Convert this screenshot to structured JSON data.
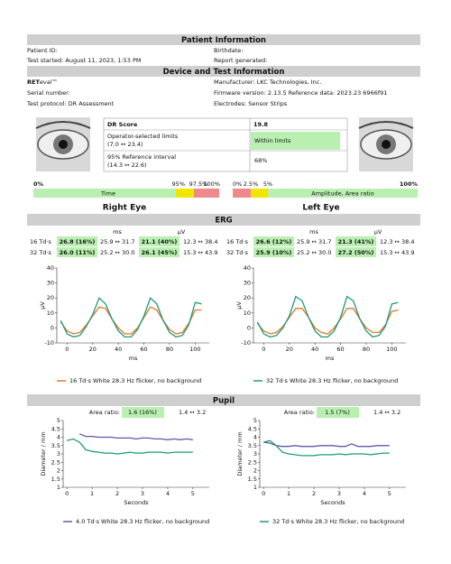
{
  "sections": {
    "patient": "Patient Information",
    "device": "Device and Test Information",
    "erg": "ERG",
    "pupil": "Pupil"
  },
  "patient": {
    "id": "Patient ID:",
    "test_started": "Test started: August 11, 2023, 1:53 PM",
    "birthdate": "Birthdate:",
    "report": "Report generated:"
  },
  "device": {
    "brand": "RET",
    "brand_italic": "eval™",
    "manufacturer": "Manufacturer: LKC Technologies, Inc.",
    "serial": "Serial number:",
    "firmware": "Firmware version: 2.13.5 Reference data: 2023.23 6966f91",
    "protocol": "Test protocol: DR Assessment",
    "electrodes": "Electrodes: Sensor Strips"
  },
  "dr_table": {
    "rows": [
      {
        "label": "DR Score",
        "value": "19.8"
      },
      {
        "label": "Operator-selected limits",
        "range": "(7.0 ↔ 23.4)",
        "value": "Within limits"
      },
      {
        "label": "95% Reference interval",
        "range": "(14.3 ↔ 22.6)",
        "value": "68%"
      }
    ]
  },
  "scales": {
    "left": {
      "labels": [
        "0%",
        "95%",
        "97.5%",
        "100%"
      ],
      "name": "Time"
    },
    "right": {
      "labels": [
        "0%",
        "2.5%",
        "5%",
        "100%"
      ],
      "name": "Amplitude, Area ratio"
    }
  },
  "eyes": {
    "right": "Right Eye",
    "left": "Left Eye"
  },
  "erg_table": {
    "units": [
      "ms",
      "µV"
    ],
    "right": [
      {
        "label": "16 Td·s",
        "ms": "26.8 (16%)",
        "ms_range": "25.9 ↔ 31.7",
        "uv": "21.1 (40%)",
        "uv_range": "12.3 ↔ 38.4"
      },
      {
        "label": "32 Td·s",
        "ms": "26.0 (11%)",
        "ms_range": "25.2 ↔ 30.0",
        "uv": "26.1 (45%)",
        "uv_range": "15.3 ↔ 43.9"
      }
    ],
    "left": [
      {
        "label": "16 Td·s",
        "ms": "26.6 (12%)",
        "ms_range": "25.9 ↔ 31.7",
        "uv": "21.3 (41%)",
        "uv_range": "12.3 ↔ 38.4"
      },
      {
        "label": "32 Td·s",
        "ms": "25.9 (10%)",
        "ms_range": "25.2 ↔ 30.0",
        "uv": "27.2 (50%)",
        "uv_range": "15.3 ↔ 43.9"
      }
    ]
  },
  "area_ratio": {
    "label": "Area ratio:",
    "right": {
      "value": "1.6 (16%)",
      "range": "1.4 ↔ 3.2"
    },
    "left": {
      "value": "1.5 (7%)",
      "range": "1.4 ↔ 3.2"
    }
  },
  "chart_data": [
    {
      "type": "line",
      "xlabel": "ms",
      "ylabel": "µV",
      "xlim": [
        -8,
        111
      ],
      "ylim": [
        -10,
        40
      ],
      "xticks": [
        0,
        20,
        40,
        60,
        80,
        100
      ],
      "yticks": [
        -10,
        0,
        10,
        20,
        30,
        40
      ],
      "x": [
        -5,
        0,
        5,
        10,
        15,
        20,
        25,
        30,
        35,
        40,
        45,
        50,
        55,
        60,
        65,
        70,
        75,
        80,
        85,
        90,
        95,
        100,
        105
      ],
      "series": [
        {
          "name": "16 Td·s White 28.3 Hz flicker, no background",
          "color": "#e8742a",
          "values": [
            4,
            -2,
            -4,
            -3,
            2,
            8,
            14,
            13,
            6,
            0,
            -4,
            -4,
            0,
            7,
            14,
            12,
            5,
            -1,
            -4,
            -3,
            3,
            12,
            12
          ]
        },
        {
          "color": "#1a9a7c",
          "values": [
            5,
            -4,
            -6,
            -5,
            1,
            9,
            20,
            16,
            6,
            -2,
            -6,
            -6,
            -1,
            8,
            20,
            16,
            5,
            -3,
            -6,
            -5,
            2,
            17,
            16
          ]
        }
      ]
    },
    {
      "type": "line",
      "xlabel": "ms",
      "ylabel": "µV",
      "xlim": [
        -8,
        111
      ],
      "ylim": [
        -10,
        40
      ],
      "xticks": [
        0,
        20,
        40,
        60,
        80,
        100
      ],
      "yticks": [
        -10,
        0,
        10,
        20,
        30,
        40
      ],
      "x": [
        -5,
        0,
        5,
        10,
        15,
        20,
        25,
        30,
        35,
        40,
        45,
        50,
        55,
        60,
        65,
        70,
        75,
        80,
        85,
        90,
        95,
        100,
        105
      ],
      "series": [
        {
          "color": "#e8742a",
          "values": [
            3,
            -2,
            -4,
            -3,
            1,
            7,
            13,
            13,
            7,
            0,
            -3,
            -4,
            0,
            6,
            13,
            13,
            6,
            0,
            -3,
            -3,
            2,
            11,
            12
          ]
        },
        {
          "name": "32 Td·s White 28.3 Hz flicker, no background",
          "color": "#1a9a7c",
          "values": [
            4,
            -4,
            -6,
            -5,
            0,
            8,
            21,
            18,
            7,
            -2,
            -6,
            -6,
            -2,
            7,
            21,
            18,
            6,
            -2,
            -6,
            -5,
            1,
            16,
            17
          ]
        }
      ]
    },
    {
      "type": "line",
      "xlabel": "Seconds",
      "ylabel": "Diameter / mm",
      "xlim": [
        -0.15,
        5.65
      ],
      "ylim": [
        1,
        5
      ],
      "xticks": [
        0,
        1,
        2,
        3,
        4,
        5
      ],
      "yticks": [
        1,
        1.5,
        2,
        2.5,
        3,
        3.5,
        4,
        4.5,
        5
      ],
      "x": [
        0,
        0.25,
        0.5,
        0.75,
        1,
        1.25,
        1.5,
        1.75,
        2,
        2.25,
        2.5,
        2.75,
        3,
        3.25,
        3.5,
        3.75,
        4,
        4.25,
        4.5,
        4.75,
        5
      ],
      "series": [
        {
          "name": "4.0 Td·s White 28.3 Hz flicker, no background",
          "color": "#5a5aa8",
          "values": [
            null,
            null,
            4.2,
            4.05,
            4.05,
            4.0,
            4.0,
            4.0,
            3.95,
            3.95,
            3.95,
            3.9,
            3.95,
            3.95,
            3.9,
            3.9,
            3.85,
            3.9,
            3.85,
            3.9,
            3.85
          ]
        },
        {
          "color": "#1a9a7c",
          "values": [
            3.8,
            3.9,
            3.7,
            3.25,
            3.15,
            3.1,
            3.05,
            3.05,
            3.0,
            3.05,
            3.1,
            3.05,
            3.05,
            3.1,
            3.1,
            3.1,
            3.05,
            3.1,
            3.1,
            3.1,
            3.1
          ]
        }
      ]
    },
    {
      "type": "line",
      "xlabel": "Seconds",
      "ylabel": "Diameter / mm",
      "xlim": [
        -0.15,
        5.65
      ],
      "ylim": [
        1,
        5
      ],
      "xticks": [
        0,
        1,
        2,
        3,
        4,
        5
      ],
      "yticks": [
        1,
        1.5,
        2,
        2.5,
        3,
        3.5,
        4,
        4.5,
        5
      ],
      "x": [
        0,
        0.25,
        0.5,
        0.75,
        1,
        1.25,
        1.5,
        1.75,
        2,
        2.25,
        2.5,
        2.75,
        3,
        3.25,
        3.5,
        3.75,
        4,
        4.25,
        4.5,
        4.75,
        5
      ],
      "series": [
        {
          "color": "#5a5aa8",
          "values": [
            3.7,
            3.65,
            3.5,
            3.45,
            3.45,
            3.5,
            3.45,
            3.45,
            3.45,
            3.5,
            3.5,
            3.5,
            3.45,
            3.45,
            3.6,
            3.45,
            3.45,
            3.45,
            3.5,
            3.5,
            3.5
          ]
        },
        {
          "name": "32 Td·s White 28.3 Hz flicker, no background",
          "color": "#1a9a7c",
          "values": [
            3.7,
            3.8,
            3.5,
            3.1,
            3.0,
            2.95,
            2.9,
            2.9,
            2.9,
            2.95,
            2.95,
            2.95,
            3.0,
            2.95,
            3.0,
            3.0,
            3.0,
            2.95,
            3.0,
            3.05,
            3.05
          ]
        }
      ]
    }
  ]
}
